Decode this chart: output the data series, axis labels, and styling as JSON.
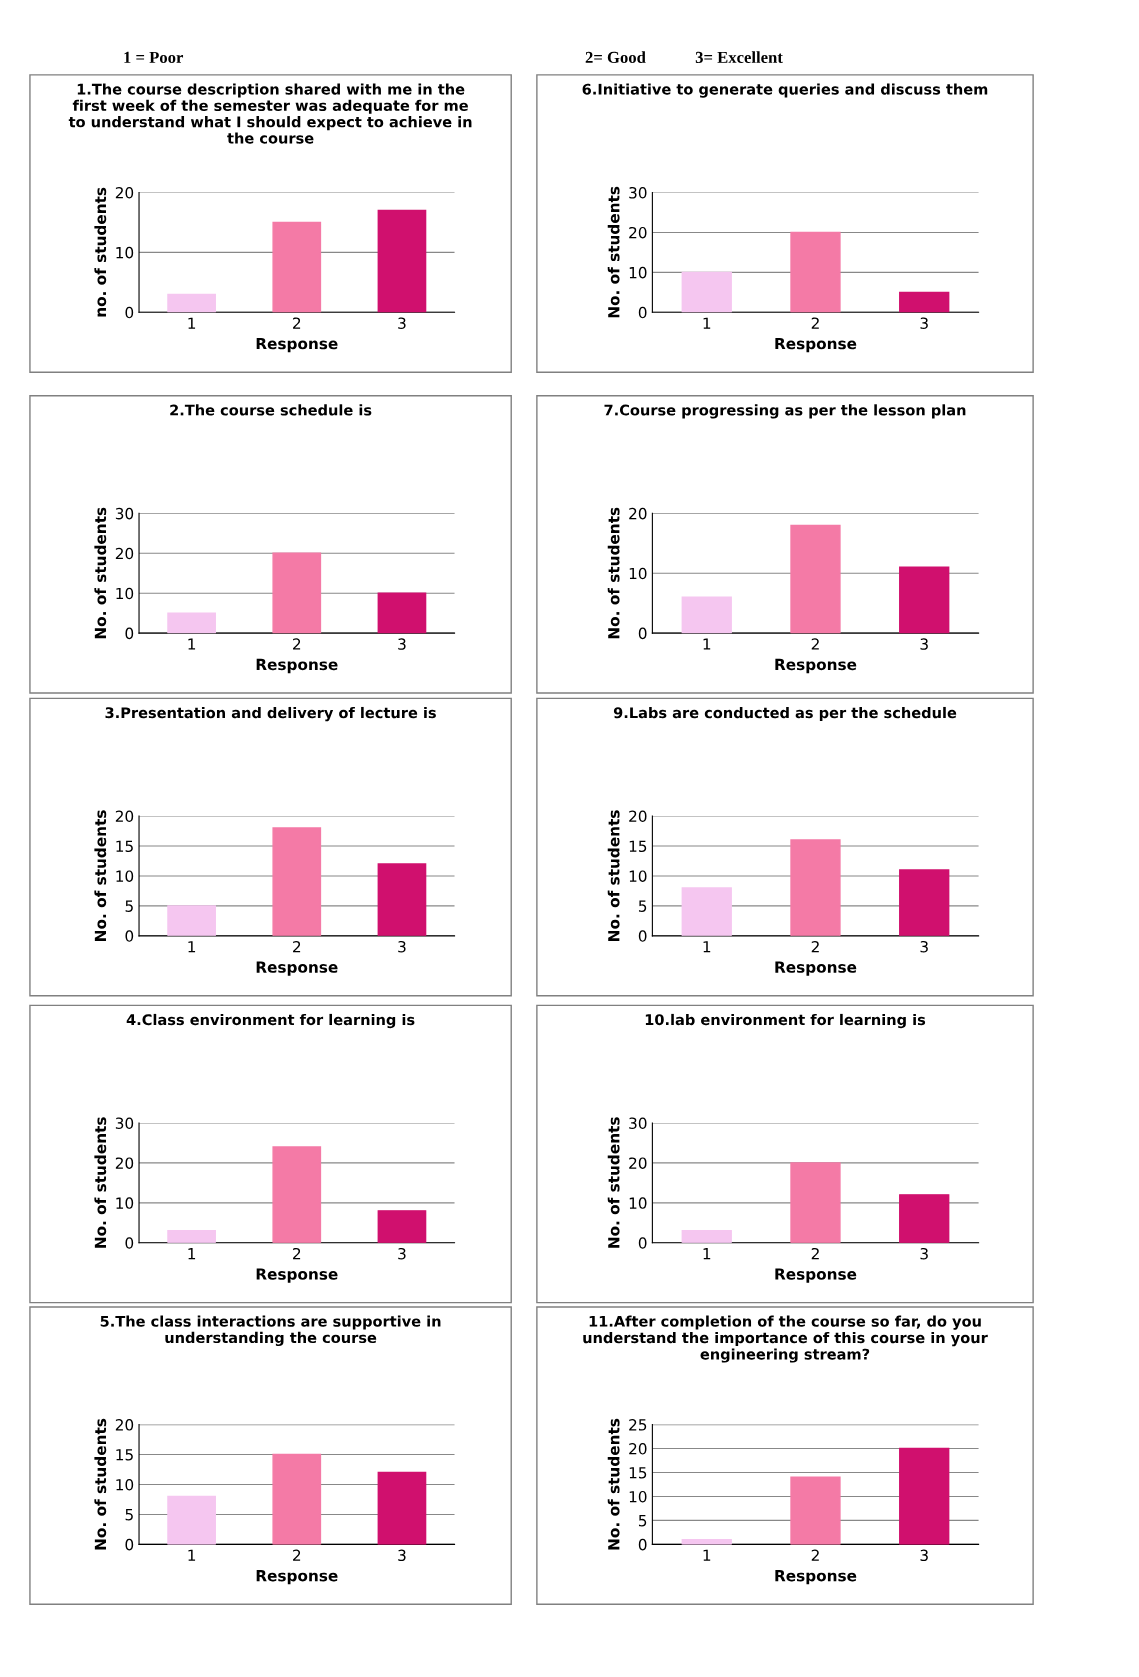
{
  "chart_data": [
    {
      "type": "bar",
      "title": "1.The course description shared with me in the first week of the semester was adequate for me to understand what I should expect to achieve in the course",
      "xlabel": "Response",
      "ylabel": "no. of students",
      "categories": [
        "1",
        "2",
        "3"
      ],
      "values": [
        3,
        15,
        17
      ],
      "colors": [
        "#f5c6f0",
        "#f47aa6",
        "#d0106e"
      ],
      "ylim": [
        0,
        20
      ],
      "yticks": [
        0,
        10,
        20
      ],
      "grid": "y",
      "legend": false,
      "annotations": [
        "1 = Poor",
        "2= Good",
        "3= Excellent"
      ]
    },
    {
      "type": "bar",
      "title": "6.Initiative to generate queries and discuss them",
      "xlabel": "Response",
      "ylabel": "No. of students",
      "categories": [
        "1",
        "2",
        "3"
      ],
      "values": [
        10,
        20,
        5
      ],
      "colors": [
        "#f5c6f0",
        "#f47aa6",
        "#d0106e"
      ],
      "ylim": [
        0,
        30
      ],
      "yticks": [
        0,
        10,
        20,
        30
      ],
      "grid": "y",
      "legend": false
    },
    {
      "type": "bar",
      "title": "2.The course schedule is",
      "xlabel": "Response",
      "ylabel": "No. of students",
      "categories": [
        "1",
        "2",
        "3"
      ],
      "values": [
        5,
        20,
        10
      ],
      "colors": [
        "#f5c6f0",
        "#f47aa6",
        "#d0106e"
      ],
      "ylim": [
        0,
        30
      ],
      "yticks": [
        0,
        10,
        20,
        30
      ],
      "grid": "y",
      "legend": false
    },
    {
      "type": "bar",
      "title": "7.Course progressing as per the lesson plan",
      "xlabel": "Response",
      "ylabel": "No. of students",
      "categories": [
        "1",
        "2",
        "3"
      ],
      "values": [
        6,
        18,
        11
      ],
      "colors": [
        "#f5c6f0",
        "#f47aa6",
        "#d0106e"
      ],
      "ylim": [
        0,
        20
      ],
      "yticks": [
        0,
        10,
        20
      ],
      "grid": "y",
      "legend": false
    },
    {
      "type": "bar",
      "title": "3.Presentation and delivery of lecture is",
      "xlabel": "Response",
      "ylabel": "No. of students",
      "categories": [
        "1",
        "2",
        "3"
      ],
      "values": [
        5,
        18,
        12
      ],
      "colors": [
        "#f5c6f0",
        "#f47aa6",
        "#d0106e"
      ],
      "ylim": [
        0,
        20
      ],
      "yticks": [
        0,
        5,
        10,
        15,
        20
      ],
      "grid": "y",
      "legend": false
    },
    {
      "type": "bar",
      "title": "9.Labs are conducted as per the schedule",
      "xlabel": "Response",
      "ylabel": "No. of students",
      "categories": [
        "1",
        "2",
        "3"
      ],
      "values": [
        8,
        16,
        11
      ],
      "colors": [
        "#f5c6f0",
        "#f47aa6",
        "#d0106e"
      ],
      "ylim": [
        0,
        20
      ],
      "yticks": [
        0,
        5,
        10,
        15,
        20
      ],
      "grid": "y",
      "legend": false
    },
    {
      "type": "bar",
      "title": "4.Class environment for learning is",
      "xlabel": "Response",
      "ylabel": "No. of students",
      "categories": [
        "1",
        "2",
        "3"
      ],
      "values": [
        3,
        24,
        8
      ],
      "colors": [
        "#f5c6f0",
        "#f47aa6",
        "#d0106e"
      ],
      "ylim": [
        0,
        30
      ],
      "yticks": [
        0,
        10,
        20,
        30
      ],
      "grid": "y",
      "legend": false
    },
    {
      "type": "bar",
      "title": "10.lab environment for learning is",
      "xlabel": "Response",
      "ylabel": "No. of students",
      "categories": [
        "1",
        "2",
        "3"
      ],
      "values": [
        3,
        20,
        12
      ],
      "colors": [
        "#f5c6f0",
        "#f47aa6",
        "#d0106e"
      ],
      "ylim": [
        0,
        30
      ],
      "yticks": [
        0,
        10,
        20,
        30
      ],
      "grid": "y",
      "legend": false
    },
    {
      "type": "bar",
      "title": "5.The class interactions are supportive in understanding the course",
      "xlabel": "Response",
      "ylabel": "No. of students",
      "categories": [
        "1",
        "2",
        "3"
      ],
      "values": [
        8,
        15,
        12
      ],
      "colors": [
        "#f5c6f0",
        "#f47aa6",
        "#d0106e"
      ],
      "ylim": [
        0,
        20
      ],
      "yticks": [
        0,
        5,
        10,
        15,
        20
      ],
      "grid": "y",
      "legend": false
    },
    {
      "type": "bar",
      "title": "11.After completion of the course so far, do you understand the importance of this course in your engineering stream?",
      "xlabel": "Response",
      "ylabel": "No. of students",
      "categories": [
        "1",
        "2",
        "3"
      ],
      "values": [
        1,
        14,
        20
      ],
      "colors": [
        "#f5c6f0",
        "#f47aa6",
        "#d0106e"
      ],
      "ylim": [
        0,
        25
      ],
      "yticks": [
        0,
        5,
        10,
        15,
        20,
        25
      ],
      "grid": "y",
      "legend": false
    }
  ]
}
